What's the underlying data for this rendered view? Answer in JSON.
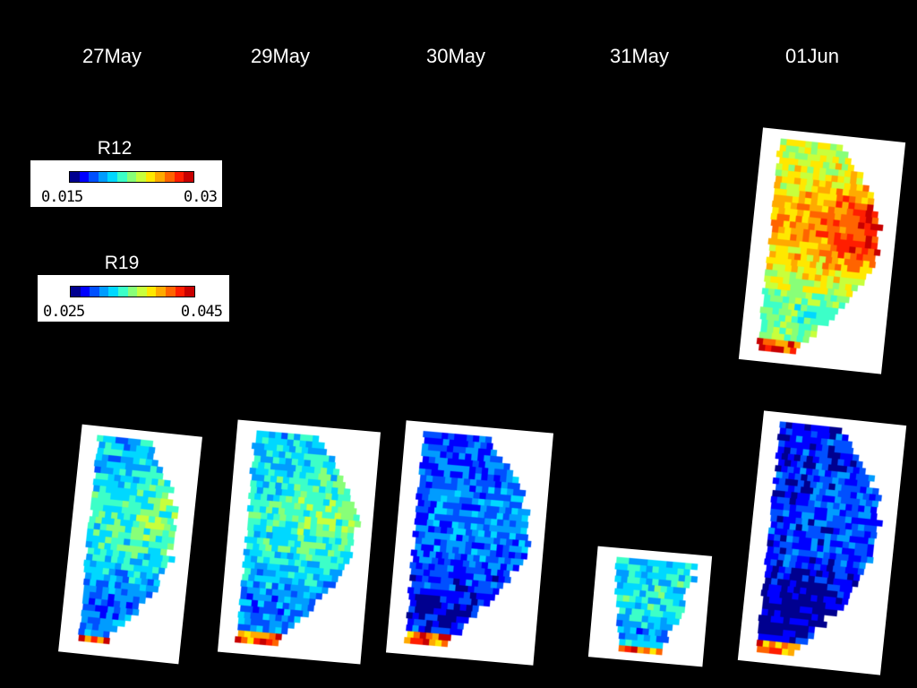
{
  "dates": [
    "27May",
    "29May",
    "30May",
    "31May",
    "01Jun"
  ],
  "colorbars": [
    {
      "name": "R12",
      "min_label": "0.015",
      "max_label": "0.03"
    },
    {
      "name": "R19",
      "min_label": "0.025",
      "max_label": "0.045"
    }
  ],
  "colormap": [
    "#00008f",
    "#0000ff",
    "#0050ff",
    "#009cff",
    "#00d8ff",
    "#3cffc8",
    "#88ff78",
    "#c8ff3c",
    "#ffe800",
    "#ffaa00",
    "#ff6400",
    "#ff1e00",
    "#c80000"
  ],
  "panels": [
    {
      "name": "panel-27may-r19",
      "date": "27May",
      "variable": "R19",
      "level": 0.3,
      "trend": 0.35,
      "rim": true
    },
    {
      "name": "panel-29may-r19",
      "date": "29May",
      "variable": "R19",
      "level": 0.33,
      "trend": 0.3,
      "rim": true
    },
    {
      "name": "panel-30may-r19",
      "date": "30May",
      "variable": "R19",
      "level": 0.18,
      "trend": 0.15,
      "rim": true
    },
    {
      "name": "panel-31may-r19",
      "date": "31May",
      "variable": "R19",
      "level": 0.35,
      "trend": 0.05,
      "rim": true
    },
    {
      "name": "panel-01jun-r12",
      "date": "01Jun",
      "variable": "R12",
      "level": 0.55,
      "trend": 0.65,
      "rim": true
    },
    {
      "name": "panel-01jun-r19",
      "date": "01Jun",
      "variable": "R19",
      "level": 0.12,
      "trend": 0.15,
      "rim": true
    }
  ]
}
